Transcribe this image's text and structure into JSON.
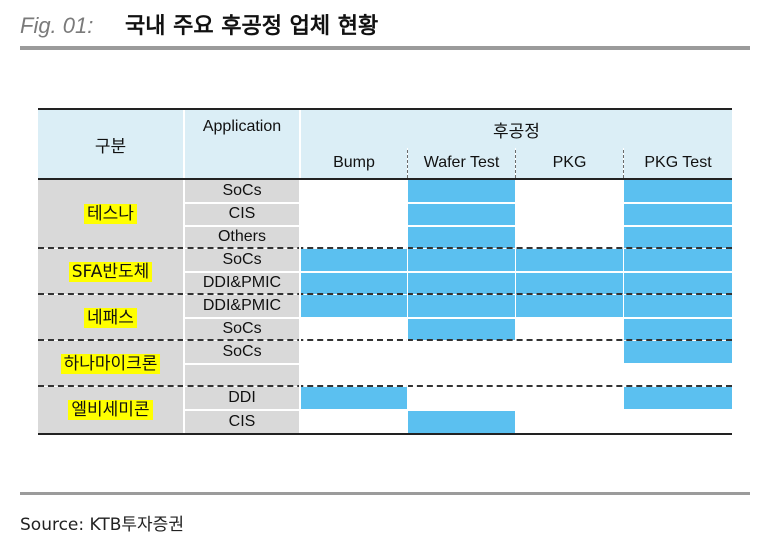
{
  "header": {
    "fig_label": "Fig. 01:",
    "title": "국내 주요 후공정 업체 현황"
  },
  "table": {
    "col_header_group": "구분",
    "col_header_app": "Application",
    "col_header_process": "후공정",
    "process_columns": [
      "Bump",
      "Wafer Test",
      "PKG",
      "PKG Test"
    ],
    "fill_color": "#5bc0f0",
    "companies": [
      {
        "name": "테스나",
        "rows": [
          {
            "app": "SoCs",
            "cells": [
              false,
              true,
              false,
              true
            ]
          },
          {
            "app": "CIS",
            "cells": [
              false,
              true,
              false,
              true
            ]
          },
          {
            "app": "Others",
            "cells": [
              false,
              true,
              false,
              true
            ]
          }
        ]
      },
      {
        "name": "SFA반도체",
        "rows": [
          {
            "app": "SoCs",
            "cells": [
              true,
              true,
              true,
              true
            ]
          },
          {
            "app": "DDI&PMIC",
            "cells": [
              true,
              true,
              true,
              true
            ]
          }
        ]
      },
      {
        "name": "네패스",
        "rows": [
          {
            "app": "DDI&PMIC",
            "cells": [
              true,
              true,
              true,
              true
            ]
          },
          {
            "app": "SoCs",
            "cells": [
              false,
              true,
              false,
              true
            ]
          }
        ]
      },
      {
        "name": "하나마이크론",
        "rows": [
          {
            "app": "SoCs",
            "cells": [
              false,
              false,
              false,
              true
            ]
          },
          {
            "app": "",
            "cells": [
              false,
              false,
              false,
              false
            ]
          }
        ]
      },
      {
        "name": "엘비세미콘",
        "rows": [
          {
            "app": "DDI",
            "cells": [
              true,
              false,
              false,
              true
            ]
          },
          {
            "app": "CIS",
            "cells": [
              false,
              true,
              false,
              false
            ]
          }
        ]
      }
    ]
  },
  "source": "Source: KTB투자증권"
}
